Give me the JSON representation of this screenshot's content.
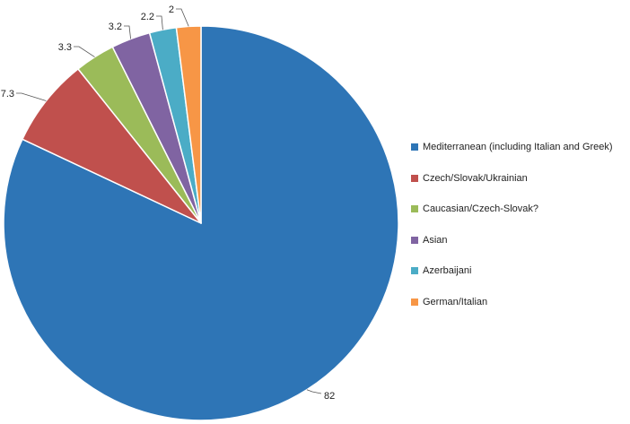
{
  "chart_data": {
    "type": "pie",
    "categories": [
      "Mediterranean (including Italian and Greek)",
      "Czech/Slovak/Ukrainian",
      "Caucasian/Czech-Slovak?",
      "Asian",
      "Azerbaijani",
      "German/Italian"
    ],
    "values": [
      82,
      7.3,
      3.3,
      3.2,
      2.2,
      2
    ],
    "data_labels": [
      "82",
      "7.3",
      "3.3",
      "3.2",
      "2.2",
      "2"
    ],
    "colors": [
      "#2E75B6",
      "#C0504D",
      "#9BBB59",
      "#8064A2",
      "#4BACC6",
      "#F79646"
    ],
    "start_angle": "12 o'clock",
    "direction": "clockwise",
    "legend_position": "right"
  }
}
